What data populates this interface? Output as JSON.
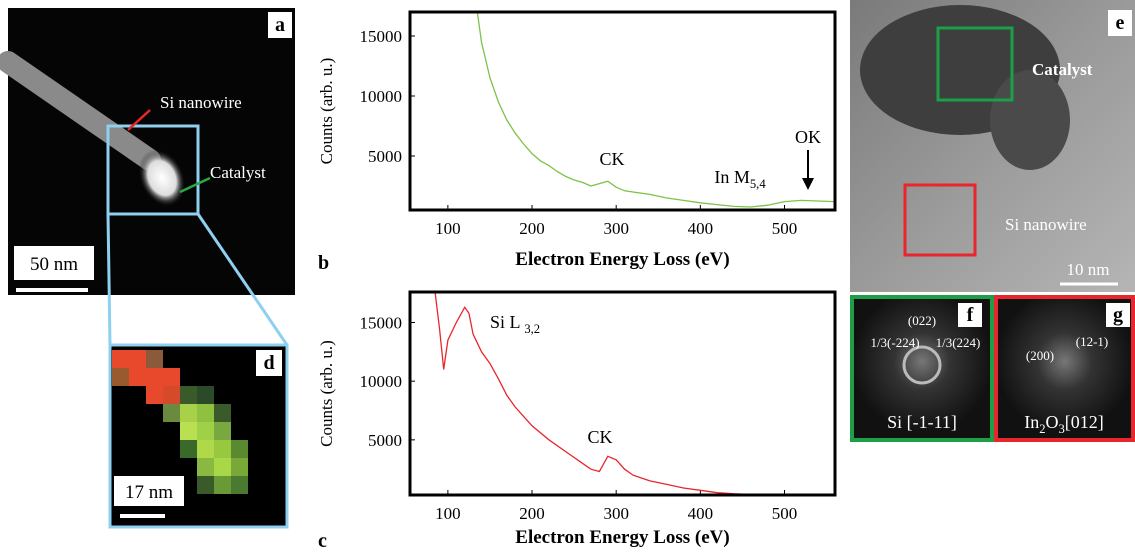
{
  "chart_data": [
    {
      "type": "line",
      "panel": "b",
      "xlabel": "Electron Energy Loss (eV)",
      "ylabel": "Counts (arb. u.)",
      "xlim": [
        55,
        560
      ],
      "ylim": [
        500,
        17000
      ],
      "xticks": [
        100,
        200,
        300,
        400,
        500
      ],
      "yticks": [
        5000,
        10000,
        15000
      ],
      "x": [
        135,
        140,
        150,
        160,
        170,
        180,
        190,
        200,
        210,
        220,
        230,
        240,
        250,
        260,
        270,
        280,
        290,
        300,
        310,
        320,
        340,
        360,
        380,
        400,
        420,
        440,
        460,
        480,
        500,
        520,
        540,
        560
      ],
      "series": [
        {
          "color": "#7dc24a",
          "values": [
            17000,
            14500,
            11500,
            9500,
            8000,
            6900,
            6000,
            5200,
            4600,
            4200,
            3700,
            3300,
            3000,
            2800,
            2500,
            2700,
            2900,
            2400,
            2100,
            2000,
            1800,
            1500,
            1300,
            1100,
            950,
            800,
            750,
            900,
            1200,
            1300,
            1250,
            1200
          ]
        }
      ],
      "annotations": [
        [
          "CK"
        ],
        [
          "In M",
          "5,4"
        ],
        [
          "OK"
        ]
      ]
    },
    {
      "type": "line",
      "panel": "c",
      "xlabel": "Electron Energy Loss (eV)",
      "ylabel": "Counts (arb. u.)",
      "xlim": [
        55,
        560
      ],
      "ylim": [
        300,
        17600
      ],
      "xticks": [
        100,
        200,
        300,
        400,
        500
      ],
      "yticks": [
        5000,
        10000,
        15000
      ],
      "x": [
        85,
        90,
        95,
        100,
        110,
        120,
        125,
        130,
        140,
        150,
        160,
        170,
        180,
        190,
        200,
        220,
        240,
        260,
        270,
        280,
        290,
        300,
        310,
        320,
        340,
        360,
        380,
        400,
        420,
        440,
        460,
        500
      ],
      "series": [
        {
          "color": "#e8262b",
          "values": [
            17500,
            14500,
            11000,
            13500,
            15000,
            16300,
            15800,
            14000,
            12500,
            11500,
            10200,
            8800,
            7800,
            7000,
            6200,
            5000,
            4000,
            3000,
            2500,
            2300,
            3600,
            3300,
            2500,
            2000,
            1500,
            1200,
            900,
            700,
            500,
            400,
            350,
            350
          ]
        }
      ],
      "annotations": [
        [
          "Si L ",
          "3,2"
        ],
        [
          "CK"
        ]
      ]
    }
  ],
  "panels": {
    "a": {
      "letter": "a",
      "labels": [
        "Si nanowire",
        "Catalyst"
      ],
      "scale": "50 nm"
    },
    "d": {
      "letter": "d",
      "scale": "17 nm"
    },
    "e": {
      "letter": "e",
      "labels": [
        "Catalyst",
        "Si nanowire"
      ],
      "scale": "10 nm"
    },
    "f": {
      "letter": "f",
      "labels": [
        "(022)",
        "1/3(-224)",
        "1/3(224)"
      ],
      "caption": [
        "Si [-1-11]"
      ]
    },
    "g": {
      "letter": "g",
      "labels": [
        "(200)",
        "(12-1)"
      ],
      "caption": [
        "In",
        "2",
        "O",
        "3",
        "[012]"
      ]
    }
  }
}
